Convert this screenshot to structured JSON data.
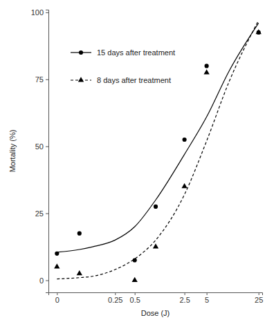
{
  "chart_data": {
    "type": "scatter",
    "x_label": "Dose (J)",
    "y_label": "Mortality (%)",
    "log": "x",
    "grid": false,
    "legend": "top-left",
    "xlim": [
      -0.015,
      28
    ],
    "xticks": [
      0,
      0.25,
      0.5,
      2.5,
      5,
      25
    ],
    "ylim": [
      -4.5,
      101
    ],
    "yticks": [
      0,
      25,
      50,
      75,
      100
    ],
    "series": [
      {
        "name": "15 days after treatment",
        "color": "#000000",
        "marker": "circle",
        "line_style": "solid",
        "x": [
          0,
          0.05,
          0.5,
          1,
          2.5,
          5,
          25
        ],
        "values": [
          10,
          17.5,
          7.5,
          27.5,
          52.5,
          80,
          92.5
        ],
        "fit_x": [
          0,
          0.05,
          0.1,
          0.25,
          0.5,
          1,
          2.5,
          5,
          10,
          25
        ],
        "fit_values": [
          10.5,
          11.5,
          12.5,
          15,
          20,
          30,
          47,
          61,
          78,
          96
        ]
      },
      {
        "name": "8 days after treatment",
        "color": "#000000",
        "marker": "triangle",
        "line_style": "dashed",
        "x": [
          0,
          0.05,
          0.5,
          1,
          2.5,
          5,
          25
        ],
        "values": [
          5,
          2.5,
          0,
          12.5,
          35,
          77.5,
          92.5
        ],
        "fit_x": [
          0,
          0.05,
          0.1,
          0.25,
          0.5,
          1,
          2.5,
          5,
          10,
          25
        ],
        "fit_values": [
          0.5,
          1,
          1.5,
          4,
          8,
          15,
          32,
          52,
          74,
          97
        ]
      }
    ]
  }
}
